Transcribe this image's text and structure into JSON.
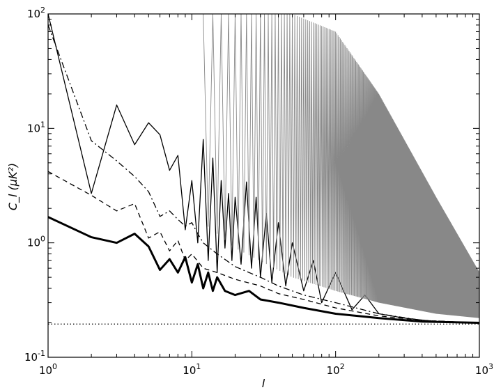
{
  "chart_data": {
    "type": "line",
    "title": "",
    "xlabel": "l",
    "ylabel": "C_l (μK²)",
    "xscale": "log",
    "yscale": "log",
    "xlim": [
      1,
      1000
    ],
    "ylim": [
      0.1,
      100
    ],
    "grid": false,
    "legend": "none",
    "x_ticks": [
      {
        "value": 1,
        "label": "10^0"
      },
      {
        "value": 10,
        "label": "10^1"
      },
      {
        "value": 100,
        "label": "10^2"
      },
      {
        "value": 1000,
        "label": "10^3"
      }
    ],
    "y_ticks": [
      {
        "value": 0.1,
        "label": "10^-1"
      },
      {
        "value": 1,
        "label": "10^0"
      },
      {
        "value": 10,
        "label": "10^1"
      },
      {
        "value": 100,
        "label": "10^2"
      }
    ],
    "series": [
      {
        "style": "thin-solid",
        "color": "#000000",
        "points": [
          [
            1,
            100
          ],
          [
            2,
            2.7
          ],
          [
            3,
            16
          ],
          [
            4,
            7.2
          ],
          [
            5,
            11.2
          ],
          [
            6,
            8.8
          ],
          [
            7,
            4.3
          ],
          [
            8,
            5.8
          ],
          [
            9,
            1.3
          ],
          [
            10,
            3.5
          ],
          [
            11,
            1.0
          ],
          [
            12,
            8.0
          ],
          [
            13,
            0.7
          ],
          [
            14,
            5.5
          ],
          [
            15,
            0.55
          ],
          [
            16,
            3.5
          ],
          [
            17,
            0.9
          ],
          [
            18,
            2.7
          ],
          [
            19,
            0.7
          ],
          [
            20,
            2.5
          ],
          [
            22,
            0.65
          ],
          [
            24,
            3.4
          ],
          [
            26,
            0.6
          ],
          [
            28,
            2.5
          ],
          [
            30,
            0.5
          ],
          [
            33,
            1.8
          ],
          [
            36,
            0.45
          ],
          [
            40,
            1.5
          ],
          [
            45,
            0.42
          ],
          [
            50,
            1.0
          ],
          [
            60,
            0.38
          ],
          [
            70,
            0.7
          ],
          [
            80,
            0.3
          ],
          [
            100,
            0.55
          ],
          [
            130,
            0.26
          ],
          [
            160,
            0.35
          ],
          [
            200,
            0.24
          ],
          [
            300,
            0.22
          ],
          [
            500,
            0.205
          ],
          [
            1000,
            0.2
          ]
        ]
      },
      {
        "style": "dash-dot",
        "color": "#000000",
        "points": [
          [
            1,
            80
          ],
          [
            2,
            7.8
          ],
          [
            3,
            5.2
          ],
          [
            4,
            3.8
          ],
          [
            5,
            2.8
          ],
          [
            6,
            1.7
          ],
          [
            7,
            1.9
          ],
          [
            8,
            1.6
          ],
          [
            9,
            1.4
          ],
          [
            10,
            1.5
          ],
          [
            11,
            1.2
          ],
          [
            12,
            1.0
          ],
          [
            15,
            0.8
          ],
          [
            20,
            0.62
          ],
          [
            25,
            0.55
          ],
          [
            30,
            0.5
          ],
          [
            40,
            0.42
          ],
          [
            60,
            0.35
          ],
          [
            100,
            0.3
          ],
          [
            200,
            0.24
          ],
          [
            400,
            0.21
          ],
          [
            1000,
            0.2
          ]
        ]
      },
      {
        "style": "dashed",
        "color": "#000000",
        "points": [
          [
            1,
            4.2
          ],
          [
            2,
            2.6
          ],
          [
            3,
            1.9
          ],
          [
            4,
            2.2
          ],
          [
            5,
            1.1
          ],
          [
            6,
            1.25
          ],
          [
            7,
            0.85
          ],
          [
            8,
            1.05
          ],
          [
            9,
            0.7
          ],
          [
            10,
            0.8
          ],
          [
            12,
            0.6
          ],
          [
            15,
            0.55
          ],
          [
            20,
            0.48
          ],
          [
            30,
            0.42
          ],
          [
            40,
            0.36
          ],
          [
            60,
            0.32
          ],
          [
            100,
            0.27
          ],
          [
            200,
            0.23
          ],
          [
            400,
            0.21
          ],
          [
            1000,
            0.2
          ]
        ]
      },
      {
        "style": "thick-solid",
        "color": "#000000",
        "points": [
          [
            1,
            1.68
          ],
          [
            2,
            1.12
          ],
          [
            3,
            1.0
          ],
          [
            4,
            1.2
          ],
          [
            5,
            0.93
          ],
          [
            6,
            0.58
          ],
          [
            7,
            0.72
          ],
          [
            8,
            0.55
          ],
          [
            9,
            0.75
          ],
          [
            10,
            0.45
          ],
          [
            11,
            0.65
          ],
          [
            12,
            0.4
          ],
          [
            13,
            0.55
          ],
          [
            14,
            0.38
          ],
          [
            15,
            0.5
          ],
          [
            17,
            0.38
          ],
          [
            20,
            0.35
          ],
          [
            25,
            0.38
          ],
          [
            30,
            0.32
          ],
          [
            40,
            0.3
          ],
          [
            60,
            0.27
          ],
          [
            100,
            0.24
          ],
          [
            200,
            0.22
          ],
          [
            400,
            0.205
          ],
          [
            1000,
            0.2
          ]
        ]
      },
      {
        "style": "dotted",
        "color": "#000000",
        "points": [
          [
            1,
            0.195
          ],
          [
            1000,
            0.195
          ]
        ]
      },
      {
        "style": "grey-oscillating",
        "color": "#888888",
        "x_start": 12,
        "x_end": 1000,
        "upper_envelope": [
          [
            12,
            100
          ],
          [
            50,
            100
          ],
          [
            100,
            70
          ],
          [
            200,
            20
          ],
          [
            500,
            2.5
          ],
          [
            1000,
            0.55
          ]
        ],
        "lower_envelope": [
          [
            12,
            1.5
          ],
          [
            20,
            0.9
          ],
          [
            50,
            0.5
          ],
          [
            100,
            0.38
          ],
          [
            200,
            0.3
          ],
          [
            500,
            0.24
          ],
          [
            1000,
            0.22
          ]
        ]
      }
    ]
  }
}
